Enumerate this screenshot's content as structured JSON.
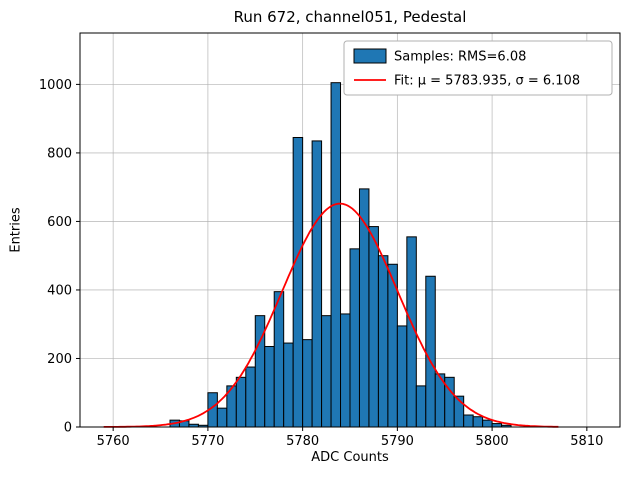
{
  "chart_data": {
    "type": "bar",
    "title": "Run 672, channel051, Pedestal",
    "xlabel": "ADC Counts",
    "ylabel": "Entries",
    "xlim": [
      5756.5,
      5813.5
    ],
    "ylim": [
      0,
      1150
    ],
    "xticks": [
      5760,
      5770,
      5780,
      5790,
      5800,
      5810
    ],
    "yticks": [
      0,
      200,
      400,
      600,
      800,
      1000
    ],
    "grid": true,
    "legend_position": "upper right",
    "bins": {
      "start": 5766,
      "width": 1
    },
    "counts": [
      20,
      18,
      8,
      5,
      100,
      55,
      120,
      145,
      175,
      325,
      235,
      395,
      245,
      845,
      255,
      835,
      325,
      1005,
      330,
      520,
      695,
      585,
      500,
      475,
      295,
      555,
      120,
      440,
      155,
      145,
      90,
      35,
      30,
      20,
      10,
      5
    ],
    "fit": {
      "mu": 5783.935,
      "sigma": 6.108,
      "amplitude": 652,
      "x_start": 5759,
      "x_end": 5807
    },
    "colors": {
      "bar_fill": "#1f77b4",
      "bar_edge": "#000000",
      "fit_line": "#ff0000",
      "grid": "#b0b0b0",
      "axes": "#000000",
      "background": "#ffffff",
      "legend_edge": "#b0b0b0"
    }
  },
  "legend": {
    "items": [
      {
        "type": "patch",
        "label": "Samples: RMS=6.08"
      },
      {
        "type": "line",
        "label": "Fit: μ = 5783.935, σ = 6.108"
      }
    ]
  }
}
